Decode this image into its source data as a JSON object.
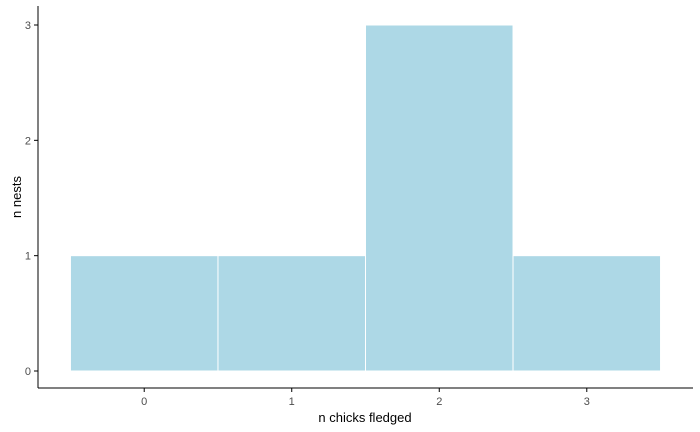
{
  "chart_data": {
    "type": "bar",
    "title": "",
    "xlabel": "n chicks fledged",
    "ylabel": "n nests",
    "categories": [
      "0",
      "1",
      "2",
      "3"
    ],
    "x": [
      0,
      1,
      2,
      3
    ],
    "values": [
      1,
      1,
      3,
      1
    ],
    "xlim": [
      -0.72,
      3.72
    ],
    "ylim": [
      0,
      3
    ],
    "yticks": [
      0,
      1,
      2,
      3
    ],
    "ytick_labels": [
      "0",
      "1",
      "2",
      "3"
    ],
    "bar_color": "#add8e6",
    "bar_edge_color": "#ffffff",
    "axis_color": "#000000",
    "grid": false,
    "legend": "none"
  }
}
